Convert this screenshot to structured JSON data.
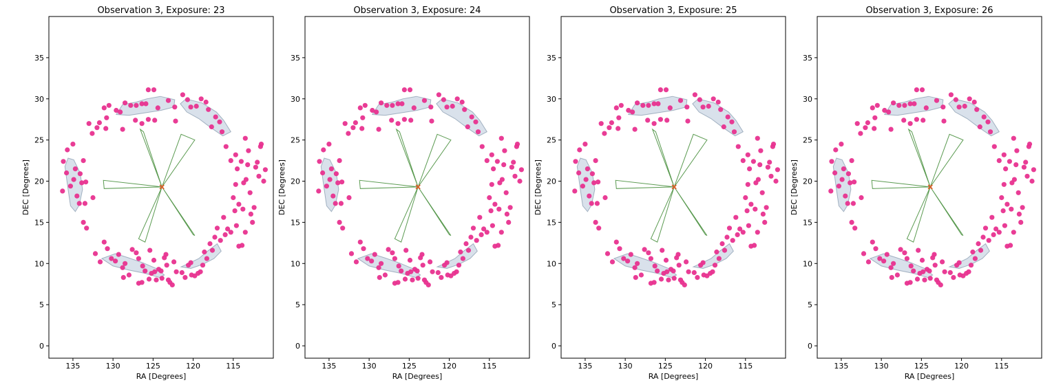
{
  "chart_data": [
    {
      "type": "scatter",
      "title": "Observation 3, Exposure: 23",
      "xlabel": "RA [Degrees]",
      "ylabel": "DEC [Degrees]",
      "xlim": [
        138,
        110
      ],
      "ylim": [
        -1.5,
        40
      ],
      "xticks": [
        135,
        130,
        125,
        120,
        115
      ],
      "yticks": [
        0,
        5,
        10,
        15,
        20,
        25,
        30,
        35
      ],
      "grid": false,
      "marker_color": "#e8318f",
      "footprint_color": "#9fb5cc",
      "wedge_color": "#5a9a50",
      "center_color": "#d9602a"
    },
    {
      "type": "scatter",
      "title": "Observation 3, Exposure: 24",
      "xlabel": "RA [Degrees]",
      "ylabel": "DEC [Degrees]",
      "xlim": [
        138,
        110
      ],
      "ylim": [
        -1.5,
        40
      ],
      "xticks": [
        135,
        130,
        125,
        120,
        115
      ],
      "yticks": [
        0,
        5,
        10,
        15,
        20,
        25,
        30,
        35
      ],
      "grid": false,
      "marker_color": "#e8318f",
      "footprint_color": "#9fb5cc",
      "wedge_color": "#5a9a50",
      "center_color": "#d9602a"
    },
    {
      "type": "scatter",
      "title": "Observation 3, Exposure: 25",
      "xlabel": "RA [Degrees]",
      "ylabel": "DEC [Degrees]",
      "xlim": [
        138,
        110
      ],
      "ylim": [
        -1.5,
        40
      ],
      "xticks": [
        135,
        130,
        125,
        120,
        115
      ],
      "yticks": [
        0,
        5,
        10,
        15,
        20,
        25,
        30,
        35
      ],
      "grid": false,
      "marker_color": "#e8318f",
      "footprint_color": "#9fb5cc",
      "wedge_color": "#5a9a50",
      "center_color": "#d9602a"
    },
    {
      "type": "scatter",
      "title": "Observation 3, Exposure: 26",
      "xlabel": "RA [Degrees]",
      "ylabel": "DEC [Degrees]",
      "xlim": [
        138,
        110
      ],
      "ylim": [
        -1.5,
        40
      ],
      "xticks": [
        135,
        130,
        125,
        120,
        115
      ],
      "yticks": [
        0,
        5,
        10,
        15,
        20,
        25,
        30,
        35
      ],
      "grid": false,
      "marker_color": "#e8318f",
      "footprint_color": "#9fb5cc",
      "wedge_color": "#5a9a50",
      "center_color": "#d9602a"
    }
  ],
  "shared": {
    "center": [
      123.9,
      19.3
    ],
    "points": [
      [
        136.3,
        18.8
      ],
      [
        136.2,
        22.4
      ],
      [
        135.8,
        21.0
      ],
      [
        135.7,
        23.8
      ],
      [
        135.0,
        24.5
      ],
      [
        134.7,
        21.5
      ],
      [
        135.3,
        19.4
      ],
      [
        134.5,
        18.2
      ],
      [
        134.9,
        20.2
      ],
      [
        134.2,
        17.3
      ],
      [
        134.1,
        20.9
      ],
      [
        133.9,
        19.8
      ],
      [
        133.4,
        19.9
      ],
      [
        133.5,
        17.3
      ],
      [
        133.7,
        15.0
      ],
      [
        133.3,
        14.3
      ],
      [
        133.7,
        22.5
      ],
      [
        133.0,
        27.0
      ],
      [
        132.6,
        25.8
      ],
      [
        132.5,
        18.0
      ],
      [
        132.2,
        11.2
      ],
      [
        131.6,
        10.2
      ],
      [
        131.1,
        12.6
      ],
      [
        130.7,
        11.8
      ],
      [
        130.2,
        10.6
      ],
      [
        129.7,
        10.3
      ],
      [
        129.3,
        11.1
      ],
      [
        128.8,
        9.5
      ],
      [
        128.5,
        10.0
      ],
      [
        128.7,
        8.3
      ],
      [
        128.0,
        8.6
      ],
      [
        127.6,
        11.7
      ],
      [
        127.1,
        11.3
      ],
      [
        126.8,
        10.6
      ],
      [
        126.3,
        9.7
      ],
      [
        126.0,
        9.1
      ],
      [
        125.5,
        8.1
      ],
      [
        125.4,
        11.6
      ],
      [
        126.8,
        7.6
      ],
      [
        126.4,
        7.7
      ],
      [
        125.2,
        8.8
      ],
      [
        124.9,
        10.4
      ],
      [
        124.8,
        9.0
      ],
      [
        124.6,
        8.0
      ],
      [
        124.3,
        9.3
      ],
      [
        124.0,
        9.1
      ],
      [
        123.9,
        8.2
      ],
      [
        123.6,
        10.7
      ],
      [
        123.4,
        11.1
      ],
      [
        123.3,
        9.8
      ],
      [
        123.1,
        8.0
      ],
      [
        122.9,
        7.7
      ],
      [
        122.6,
        7.4
      ],
      [
        122.4,
        10.2
      ],
      [
        122.1,
        9.0
      ],
      [
        121.4,
        8.9
      ],
      [
        121.0,
        8.3
      ],
      [
        120.6,
        9.8
      ],
      [
        120.3,
        10.1
      ],
      [
        120.2,
        8.6
      ],
      [
        119.8,
        8.5
      ],
      [
        119.4,
        8.8
      ],
      [
        119.1,
        9.0
      ],
      [
        118.8,
        9.8
      ],
      [
        118.6,
        11.4
      ],
      [
        118.3,
        10.6
      ],
      [
        117.9,
        12.4
      ],
      [
        117.6,
        11.6
      ],
      [
        117.3,
        13.2
      ],
      [
        117.0,
        14.3
      ],
      [
        116.6,
        12.8
      ],
      [
        116.2,
        15.6
      ],
      [
        116.0,
        13.5
      ],
      [
        115.7,
        14.2
      ],
      [
        115.3,
        13.8
      ],
      [
        114.8,
        16.4
      ],
      [
        114.6,
        14.6
      ],
      [
        114.3,
        12.1
      ],
      [
        113.9,
        12.2
      ],
      [
        113.5,
        13.8
      ],
      [
        115.0,
        18.0
      ],
      [
        114.7,
        19.6
      ],
      [
        114.5,
        21.5
      ],
      [
        114.3,
        17.2
      ],
      [
        113.8,
        16.6
      ],
      [
        113.7,
        19.8
      ],
      [
        113.4,
        20.2
      ],
      [
        113.2,
        22.0
      ],
      [
        113.1,
        23.7
      ],
      [
        112.9,
        18.6
      ],
      [
        112.8,
        16.0
      ],
      [
        112.6,
        15.0
      ],
      [
        112.4,
        16.8
      ],
      [
        112.2,
        21.7
      ],
      [
        112.0,
        22.3
      ],
      [
        111.8,
        20.6
      ],
      [
        111.6,
        24.2
      ],
      [
        111.5,
        24.5
      ],
      [
        111.2,
        20.0
      ],
      [
        111.0,
        21.4
      ],
      [
        113.5,
        25.2
      ],
      [
        114.0,
        22.4
      ],
      [
        114.7,
        23.2
      ],
      [
        115.3,
        22.5
      ],
      [
        115.9,
        24.2
      ],
      [
        116.4,
        26.0
      ],
      [
        116.7,
        27.2
      ],
      [
        117.2,
        27.8
      ],
      [
        117.7,
        26.6
      ],
      [
        118.1,
        28.7
      ],
      [
        118.4,
        29.6
      ],
      [
        119.0,
        30.0
      ],
      [
        119.6,
        29.1
      ],
      [
        120.3,
        29.0
      ],
      [
        120.7,
        29.9
      ],
      [
        121.3,
        30.5
      ],
      [
        122.3,
        29.0
      ],
      [
        123.1,
        29.8
      ],
      [
        124.4,
        28.9
      ],
      [
        124.9,
        31.1
      ],
      [
        125.6,
        31.1
      ],
      [
        125.9,
        29.4
      ],
      [
        126.4,
        29.4
      ],
      [
        127.1,
        29.2
      ],
      [
        127.8,
        29.2
      ],
      [
        128.5,
        29.5
      ],
      [
        129.1,
        28.4
      ],
      [
        129.6,
        28.6
      ],
      [
        130.5,
        29.2
      ],
      [
        131.1,
        28.9
      ],
      [
        131.7,
        27.1
      ],
      [
        132.0,
        26.5
      ],
      [
        130.8,
        27.7
      ],
      [
        128.8,
        26.3
      ],
      [
        127.2,
        27.4
      ],
      [
        126.4,
        27.0
      ],
      [
        125.6,
        27.5
      ],
      [
        124.8,
        27.4
      ],
      [
        122.2,
        27.3
      ],
      [
        130.9,
        26.4
      ]
    ],
    "footprints": [
      [
        [
          129.6,
          28.1
        ],
        [
          128.8,
          29.3
        ],
        [
          127.1,
          29.6
        ],
        [
          125.8,
          30.0
        ],
        [
          124.1,
          30.3
        ],
        [
          122.3,
          29.9
        ],
        [
          122.4,
          29.0
        ],
        [
          124.0,
          28.6
        ],
        [
          126.0,
          28.3
        ],
        [
          128.0,
          28.0
        ]
      ],
      [
        [
          120.9,
          30.0
        ],
        [
          118.9,
          29.5
        ],
        [
          117.1,
          28.4
        ],
        [
          116.2,
          27.4
        ],
        [
          115.3,
          26.0
        ],
        [
          116.3,
          25.5
        ],
        [
          117.8,
          26.5
        ],
        [
          119.3,
          27.6
        ],
        [
          120.8,
          28.4
        ],
        [
          121.6,
          29.4
        ]
      ],
      [
        [
          135.6,
          22.8
        ],
        [
          136.0,
          21.8
        ],
        [
          135.6,
          19.0
        ],
        [
          135.3,
          17.0
        ],
        [
          134.7,
          16.3
        ],
        [
          134.2,
          17.1
        ],
        [
          133.8,
          19.0
        ],
        [
          134.1,
          21.0
        ],
        [
          134.9,
          22.6
        ]
      ],
      [
        [
          131.4,
          10.6
        ],
        [
          129.7,
          11.2
        ],
        [
          128.1,
          10.7
        ],
        [
          126.3,
          10.1
        ],
        [
          124.6,
          9.4
        ],
        [
          123.6,
          8.6
        ],
        [
          124.2,
          8.3
        ],
        [
          126.0,
          8.8
        ],
        [
          128.0,
          9.2
        ],
        [
          130.0,
          9.7
        ]
      ],
      [
        [
          121.5,
          9.6
        ],
        [
          120.6,
          10.0
        ],
        [
          119.3,
          10.6
        ],
        [
          118.2,
          11.5
        ],
        [
          117.0,
          12.4
        ],
        [
          116.5,
          11.5
        ],
        [
          117.4,
          10.6
        ],
        [
          118.8,
          9.9
        ],
        [
          120.3,
          9.4
        ]
      ]
    ],
    "wedges": [
      [
        [
          123.9,
          19.3
        ],
        [
          126.6,
          26.3
        ],
        [
          126.2,
          26.0
        ]
      ],
      [
        [
          123.9,
          19.3
        ],
        [
          121.5,
          25.7
        ],
        [
          119.8,
          25.0
        ]
      ],
      [
        [
          123.9,
          19.3
        ],
        [
          131.2,
          20.1
        ],
        [
          131.1,
          19.1
        ]
      ],
      [
        [
          123.9,
          19.3
        ],
        [
          126.0,
          12.6
        ],
        [
          126.8,
          13.0
        ]
      ],
      [
        [
          123.9,
          19.3
        ],
        [
          120.0,
          13.5
        ],
        [
          119.8,
          13.4
        ]
      ]
    ]
  }
}
